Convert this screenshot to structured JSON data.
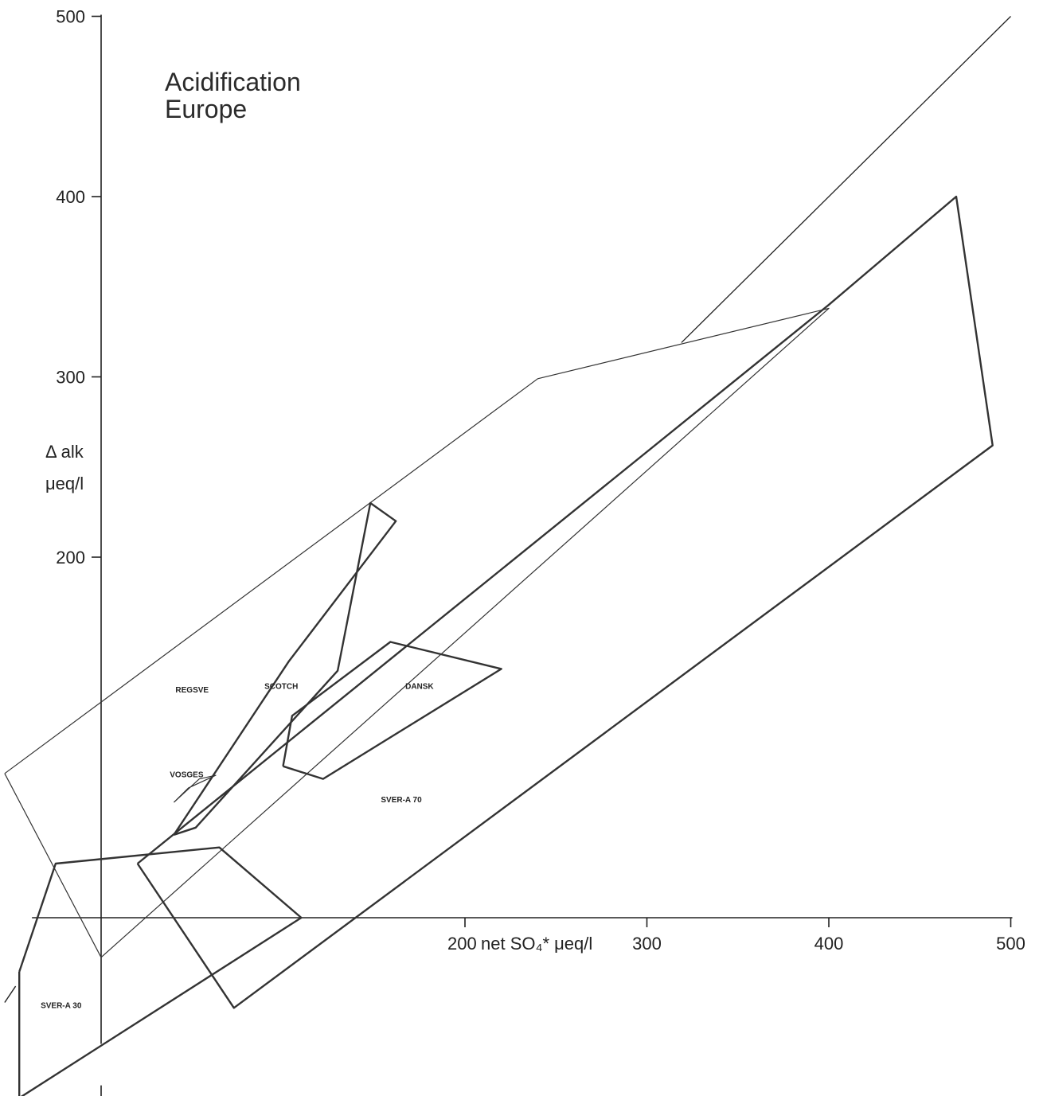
{
  "chart_data": {
    "type": "line",
    "title": [
      "Acidification",
      "Europe"
    ],
    "xlabel": "net SO₄* μeq/l",
    "ylabel": [
      "Δ alk",
      "μeq/l"
    ],
    "xlim": [
      -50,
      500
    ],
    "ylim": [
      -100,
      500
    ],
    "x_ticks": [
      200,
      300,
      400,
      500
    ],
    "y_ticks": [
      200,
      300,
      400,
      500
    ],
    "reference_line": {
      "x": [
        0,
        500
      ],
      "y": [
        0,
        500
      ]
    },
    "regions": [
      {
        "name": "REGSVE",
        "label_pos": {
          "x": 50,
          "y": 125
        },
        "polygon": [
          [
            -53,
            80
          ],
          [
            240,
            299
          ],
          [
            400,
            338
          ],
          [
            0,
            -22
          ],
          [
            -53,
            80
          ]
        ]
      },
      {
        "name": "SVER-A 70",
        "label_pos": {
          "x": 165,
          "y": 64
        },
        "polygon": [
          [
            20,
            30
          ],
          [
            400,
            340
          ],
          [
            470,
            400
          ],
          [
            490,
            262
          ],
          [
            73,
            -50
          ],
          [
            20,
            30
          ]
        ]
      },
      {
        "name": "SVER-A 30",
        "label_pos": {
          "x": -22,
          "y": -50
        },
        "polygon": [
          [
            -45,
            -30
          ],
          [
            -25,
            30
          ],
          [
            65,
            39
          ],
          [
            110,
            0
          ],
          [
            -45,
            -100
          ],
          [
            -45,
            -30
          ]
        ]
      },
      {
        "name": "SCOTCH",
        "label_pos": {
          "x": 99,
          "y": 127
        },
        "polygon": [
          [
            40,
            46
          ],
          [
            52,
            50
          ],
          [
            130,
            137
          ],
          [
            148,
            230
          ],
          [
            162,
            220
          ],
          [
            103,
            142
          ],
          [
            40,
            46
          ]
        ]
      },
      {
        "name": "DANSK",
        "label_pos": {
          "x": 175,
          "y": 127
        },
        "polygon": [
          [
            100,
            84
          ],
          [
            105,
            112
          ],
          [
            159,
            153
          ],
          [
            220,
            138
          ],
          [
            122,
            77
          ],
          [
            100,
            84
          ]
        ]
      },
      {
        "name": "VOSGES",
        "label_pos": {
          "x": 47,
          "y": 78
        },
        "polygon": [
          [
            40,
            64
          ],
          [
            54,
            77
          ],
          [
            63,
            79
          ],
          [
            48,
            72
          ],
          [
            40,
            64
          ]
        ]
      }
    ]
  }
}
